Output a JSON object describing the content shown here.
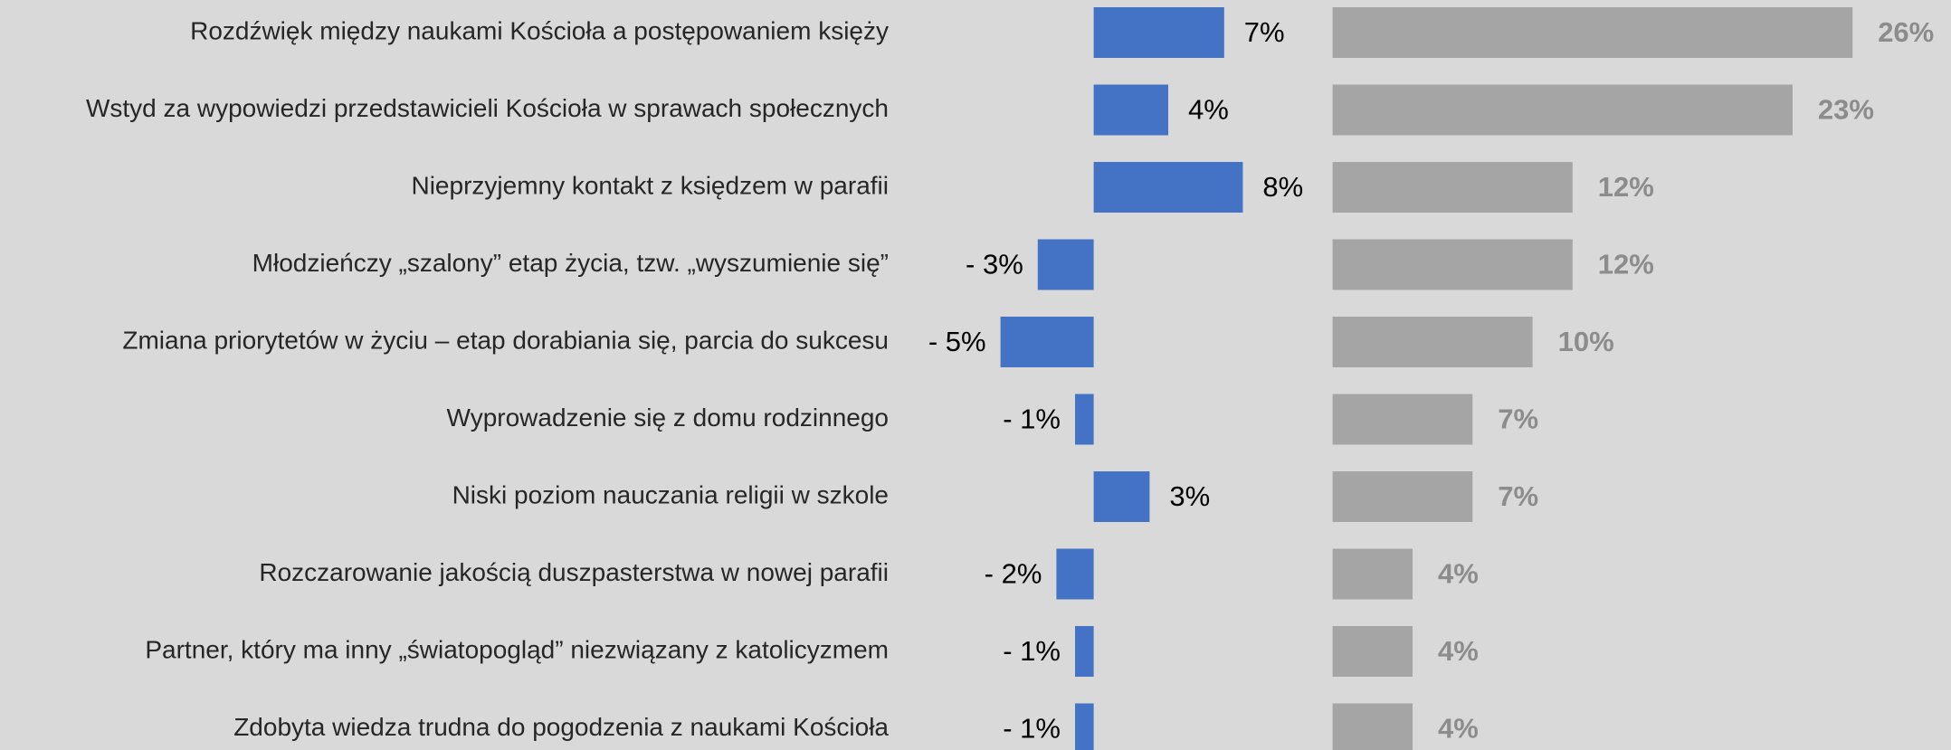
{
  "chart_data": {
    "type": "bar",
    "categories": [
      "Rozdźwięk między naukami Kościoła a postępowaniem księży",
      "Wstyd za wypowiedzi przedstawicieli Kościoła w sprawach społecznych",
      "Nieprzyjemny kontakt z księdzem w parafii",
      "Młodzieńczy „szalony” etap życia, tzw. „wyszumienie się”",
      "Zmiana priorytetów w życiu – etap dorabiania się, parcia do sukcesu",
      "Wyprowadzenie się z domu rodzinnego",
      "Niski poziom nauczania religii w szkole",
      "Rozczarowanie jakością duszpasterstwa w nowej parafii",
      "Partner, który ma inny „światopogląd” niezwiązany z katolicyzmem",
      "Zdobyta wiedza trudna do pogodzenia z naukami Kościoła"
    ],
    "series": [
      {
        "color": "#4472c4",
        "label_color": "#000000",
        "values": [
          7,
          4,
          8,
          -3,
          -5,
          -1,
          3,
          -2,
          -1,
          -1
        ],
        "value_labels": [
          "7%",
          "4%",
          "8%",
          "- 3%",
          "- 5%",
          "- 1%",
          "3%",
          "- 2%",
          "- 1%",
          "- 1%"
        ]
      },
      {
        "color": "#a5a5a5",
        "label_color": "#8c8c8c",
        "values": [
          26,
          23,
          12,
          12,
          10,
          7,
          7,
          4,
          4,
          4
        ],
        "value_labels": [
          "26%",
          "23%",
          "12%",
          "12%",
          "10%",
          "7%",
          "7%",
          "4%",
          "4%",
          "4%"
        ]
      }
    ]
  }
}
